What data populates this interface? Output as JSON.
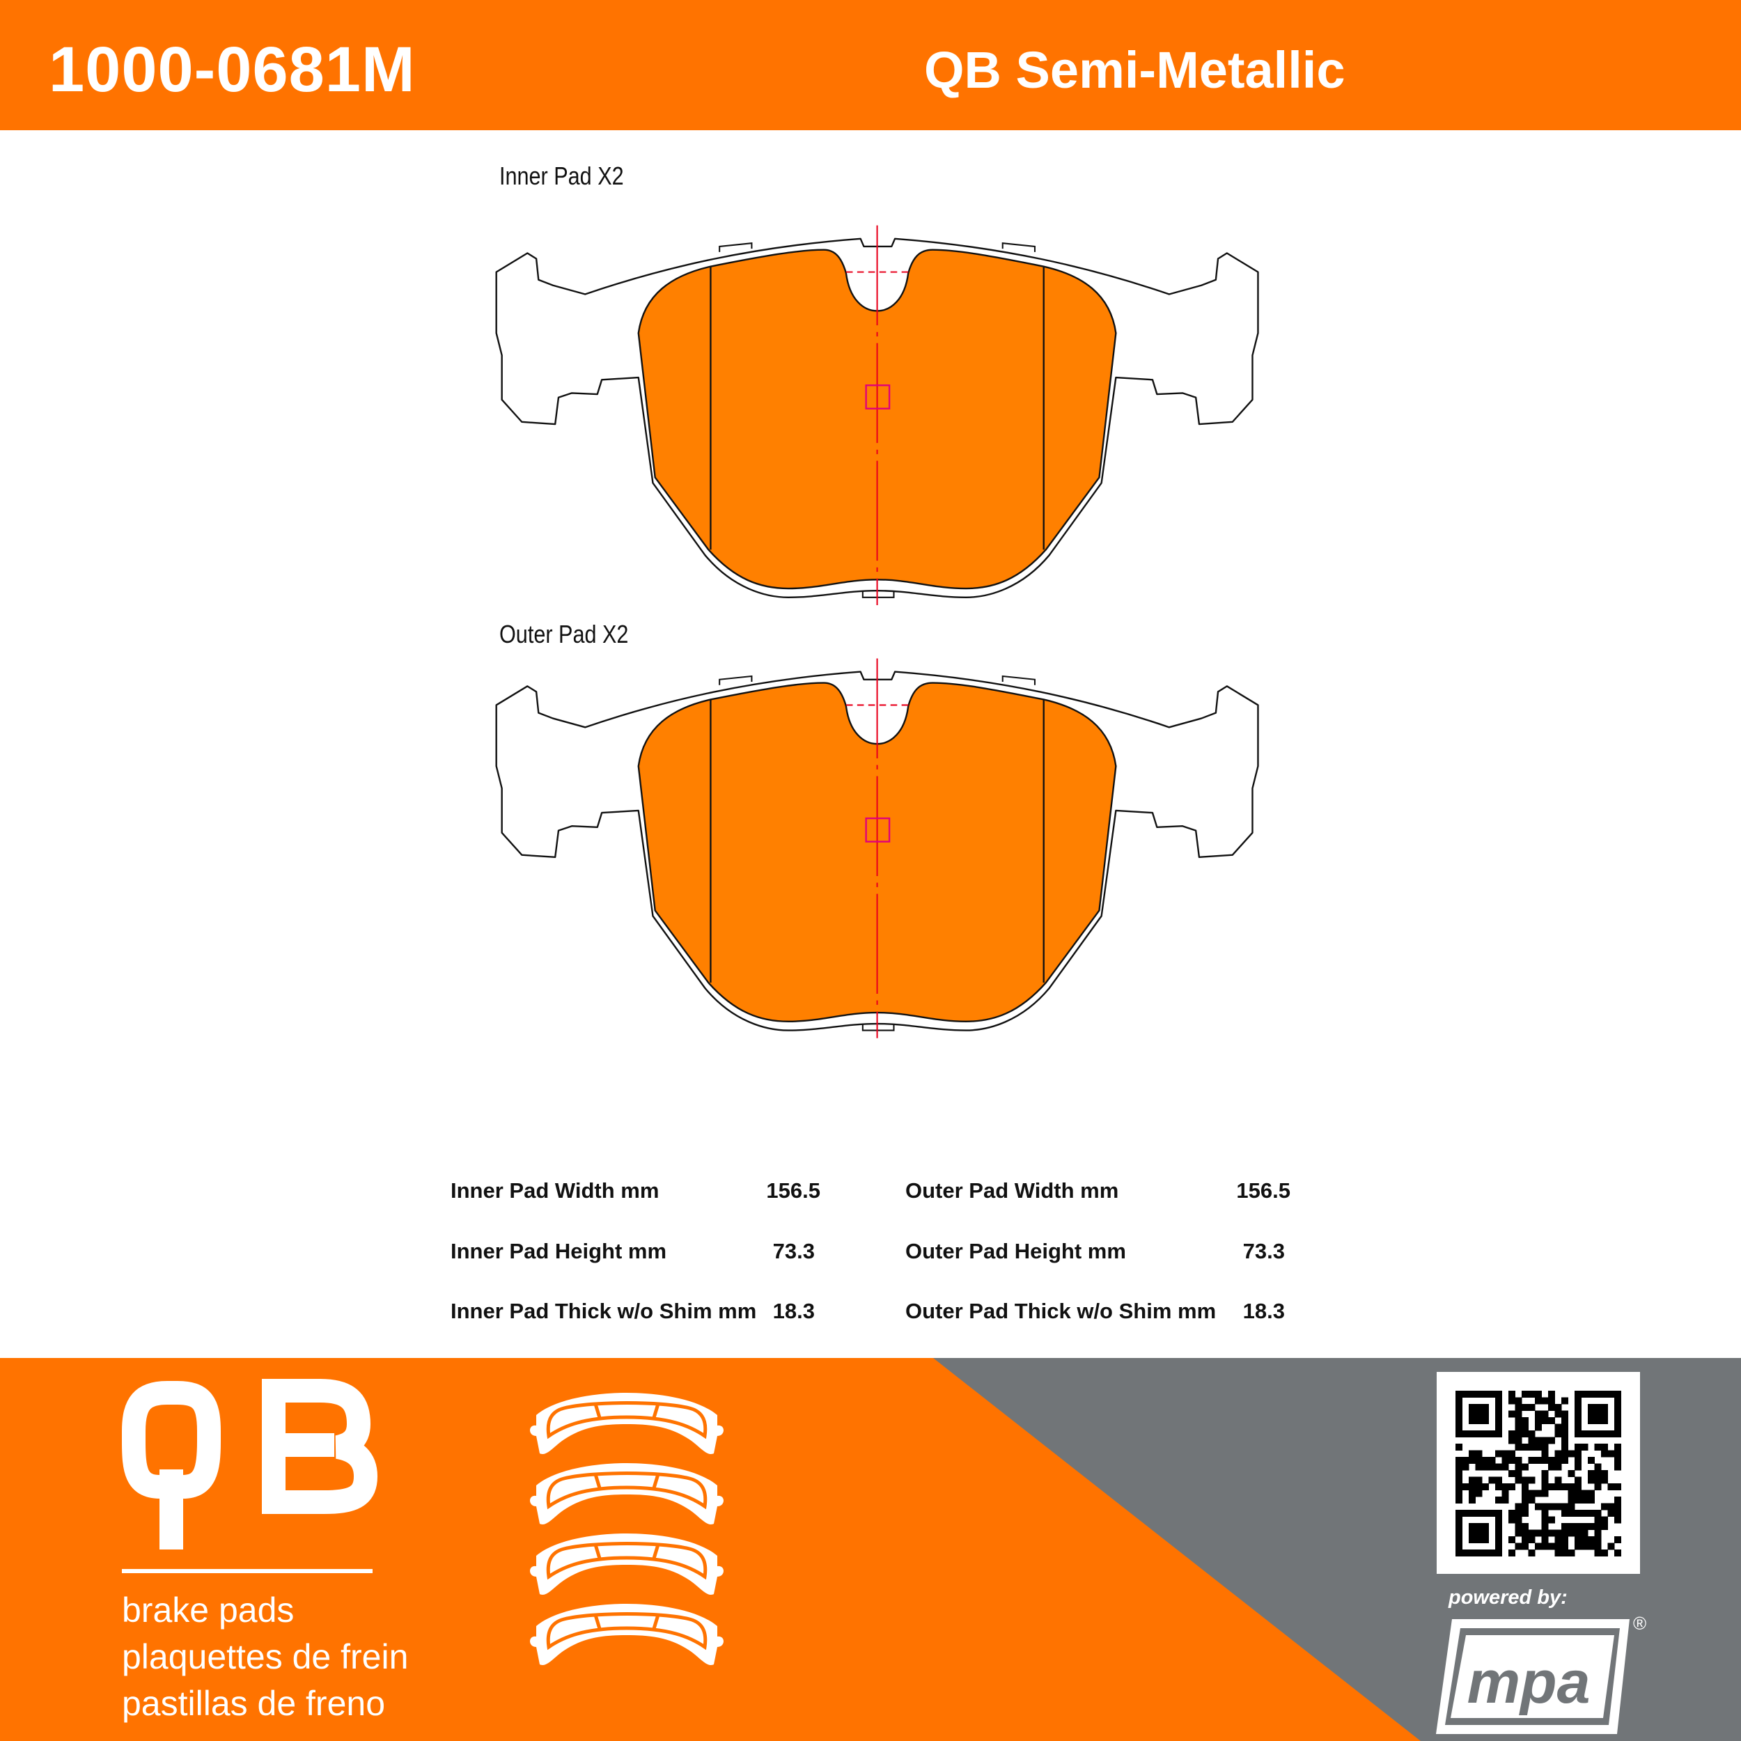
{
  "header": {
    "part_number": "1000-0681M",
    "product_line": "QB Semi-Metallic"
  },
  "drawings": {
    "inner_label": "Inner Pad X2",
    "outer_label": "Outer Pad X2"
  },
  "specs": {
    "inner": [
      {
        "label": "Inner Pad Width mm",
        "value": "156.5"
      },
      {
        "label": "Inner Pad Height mm",
        "value": "73.3"
      },
      {
        "label": "Inner Pad Thick w/o Shim mm",
        "value": "18.3"
      }
    ],
    "outer": [
      {
        "label": "Outer Pad Width mm",
        "value": "156.5"
      },
      {
        "label": "Outer Pad Height mm",
        "value": "73.3"
      },
      {
        "label": "Outer Pad Thick w/o Shim mm",
        "value": "18.3"
      }
    ]
  },
  "footer": {
    "brand_logo": "QB",
    "lines": [
      "brake pads",
      "plaquettes de frein",
      "pastillas de freno"
    ],
    "powered_by": "powered by:",
    "partner_logo": "mpa",
    "registered_mark": "®"
  },
  "colors": {
    "brand_orange": "#ff7300",
    "pad_orange": "#ff8000",
    "footer_gray": "#717578",
    "centerline_red": "#e8001c",
    "marker_magenta": "#e0007a"
  }
}
